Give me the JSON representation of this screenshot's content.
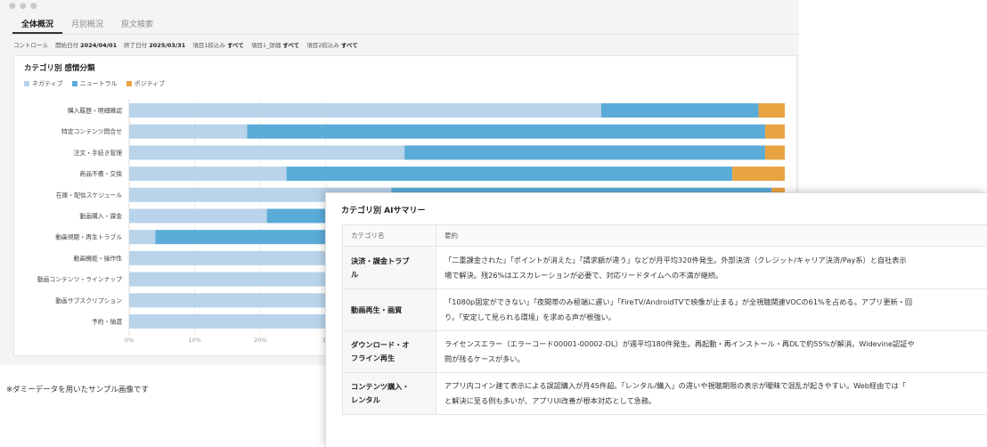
{
  "tabs": [
    "全体概況",
    "月別概況",
    "原文検索"
  ],
  "filters": {
    "control_label": "コントロール",
    "start_label": "開始日付",
    "start_value": "2024/04/01",
    "end_label": "終了日付",
    "end_value": "2025/03/31",
    "item1_label": "項目1絞込み",
    "item1_value": "すべて",
    "item1_detail_label": "項目1_詳細",
    "item1_detail_value": "すべて",
    "item2_label": "項目2絞込み",
    "item2_value": "すべて"
  },
  "chart_title": "カテゴリ別 感情分類",
  "colors": {
    "negative": "#b8d3ea",
    "neutral": "#5aabd8",
    "positive": "#e9a442"
  },
  "chart_data": {
    "type": "bar",
    "orientation": "horizontal",
    "stacked": true,
    "title": "カテゴリ別 感情分類",
    "legend": [
      "ネガティブ",
      "ニュートラル",
      "ポジティブ"
    ],
    "categories": [
      "購入履歴・明細確認",
      "特定コンテンツ問合せ",
      "注文・手続き管理",
      "商品不備・交換",
      "在庫・配信スケジュール",
      "動画購入・課金",
      "動画視聴・再生トラブル",
      "動画機能・操作性",
      "動画コンテンツ・ラインナップ",
      "動画サブスクリプション",
      "予約・抽選"
    ],
    "series": [
      {
        "name": "ネガティブ",
        "values": [
          72,
          18,
          42,
          24,
          40,
          21,
          4,
          32,
          32,
          32,
          32
        ]
      },
      {
        "name": "ニュートラル",
        "values": [
          24,
          79,
          55,
          68,
          58,
          66,
          72,
          60,
          60,
          60,
          60
        ]
      },
      {
        "name": "ポジティブ",
        "values": [
          4,
          3,
          3,
          8,
          2,
          13,
          24,
          8,
          8,
          8,
          8
        ]
      }
    ],
    "xticks": [
      "0%",
      "10%",
      "20%",
      "30"
    ],
    "xlim": [
      0,
      100
    ]
  },
  "summary": {
    "title": "カテゴリ別 AIサマリー",
    "headers": [
      "カテゴリ名",
      "要約"
    ],
    "rows": [
      {
        "category_lines": [
          "決済・課金トラブ",
          "ル"
        ],
        "lines": [
          "「二重課金された」「ポイントが消えた」「請求額が違う」などが月平均320件発生。外部決済（クレジット/キャリア決済/Pay系）と自社表示",
          "場で解決。残26%はエスカレーションが必要で、対応リードタイムへの不満が継続。"
        ]
      },
      {
        "category_lines": [
          "動画再生・画質"
        ],
        "lines": [
          "「1080p固定ができない」「夜間帯のみ極端に遅い」「FireTV/AndroidTVで映像が止まる」が全視聴関連VOCの61%を占める。アプリ更新・回",
          "り。「安定して見られる環境」を求める声が根強い。"
        ]
      },
      {
        "category_lines": [
          "ダウンロード・オ",
          "フライン再生"
        ],
        "lines": [
          "ライセンスエラー（エラーコード00001-00002-DL）が週平均180件発生。再起動・再インストール・再DLで約55%が解消。Widevine認証や",
          "問が残るケースが多い。"
        ]
      },
      {
        "category_lines": [
          "コンテンツ購入・",
          "レンタル"
        ],
        "lines": [
          "アプリ内コイン建て表示による誤認購入が月45件超。「レンタル/購入」の違いや視聴期限の表示が曖昧で混乱が起きやすい。Web経由では「",
          "と解決に至る例も多いが、アプリUI改善が根本対応として急務。"
        ]
      }
    ]
  },
  "note": "※ダミーデータを用いたサンプル画像です"
}
